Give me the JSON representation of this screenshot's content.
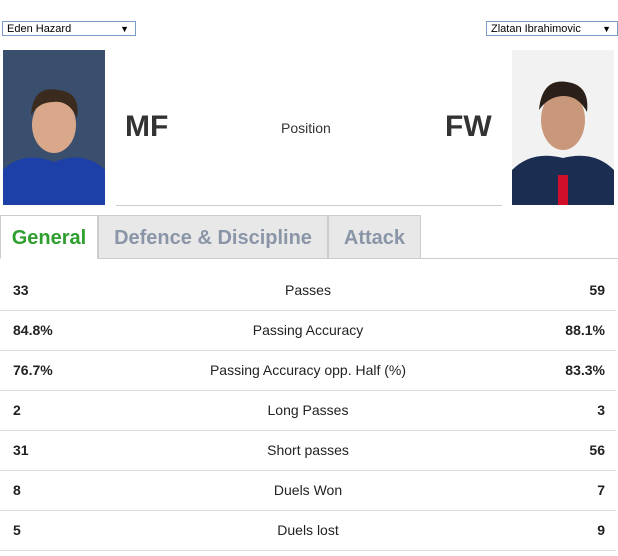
{
  "players": {
    "left": {
      "name": "Eden Hazard",
      "position": "MF"
    },
    "right": {
      "name": "Zlatan Ibrahimovic",
      "position": "FW"
    },
    "position_label": "Position"
  },
  "tabs": [
    "General",
    "Defence & Discipline",
    "Attack"
  ],
  "table": {
    "rows": [
      [
        "33",
        "Passes",
        "59"
      ],
      [
        "84.8%",
        "Passing Accuracy",
        "88.1%"
      ],
      [
        "76.7%",
        "Passing Accuracy opp. Half (%)",
        "83.3%"
      ],
      [
        "2",
        "Long Passes",
        "3"
      ],
      [
        "31",
        "Short passes",
        "56"
      ],
      [
        "8",
        "Duels Won",
        "7"
      ],
      [
        "5",
        "Duels lost",
        "9"
      ]
    ]
  }
}
